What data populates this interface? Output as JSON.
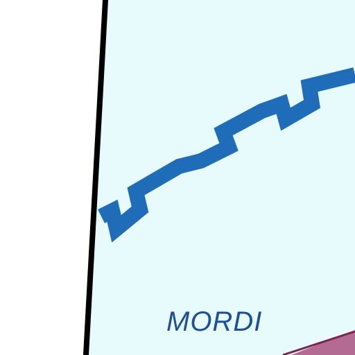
{
  "map": {
    "place_label": "MORDI",
    "colors": {
      "land": "#e7fbfc",
      "outside": "#ffffff",
      "border": "#000000",
      "road": "#1f6cb8",
      "label": "#1d4f96",
      "lower_band": "#b36a93",
      "lower_band_edge": "#7a2452"
    }
  }
}
